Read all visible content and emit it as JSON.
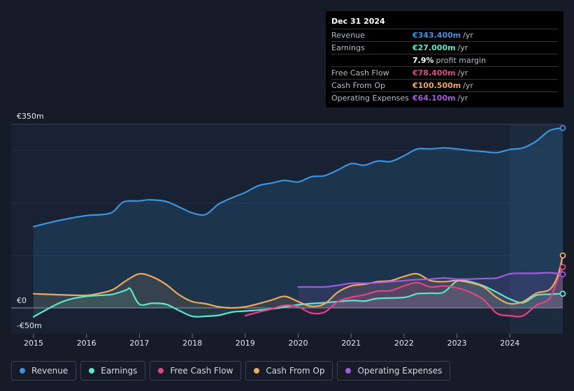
{
  "tooltip": {
    "date": "Dec 31 2024",
    "rows": [
      {
        "label": "Revenue",
        "value": "€343.400m",
        "unit": "/yr",
        "color": "#3b94e0"
      },
      {
        "label": "Earnings",
        "value": "€27.000m",
        "unit": "/yr",
        "color": "#5ee6cf"
      },
      {
        "label": "",
        "value": "7.9%",
        "unit": "profit margin",
        "color": "#ffffff"
      },
      {
        "label": "Free Cash Flow",
        "value": "€78.400m",
        "unit": "/yr",
        "color": "#e0458a"
      },
      {
        "label": "Cash From Op",
        "value": "€100.500m",
        "unit": "/yr",
        "color": "#efa95b"
      },
      {
        "label": "Operating Expenses",
        "value": "€64.100m",
        "unit": "/yr",
        "color": "#a35be0"
      }
    ]
  },
  "y_labels": {
    "top": "€350m",
    "zero": "€0",
    "bottom": "-€50m"
  },
  "legend": [
    {
      "name": "Revenue",
      "color": "#3b94e0"
    },
    {
      "name": "Earnings",
      "color": "#5ee6cf"
    },
    {
      "name": "Free Cash Flow",
      "color": "#e0458a"
    },
    {
      "name": "Cash From Op",
      "color": "#efa95b"
    },
    {
      "name": "Operating Expenses",
      "color": "#a35be0"
    }
  ],
  "chart_data": {
    "type": "line",
    "title": "",
    "xlabel": "",
    "ylabel": "",
    "ylim": [
      -50,
      350
    ],
    "xlim": [
      2015.0,
      2025.0
    ],
    "x_ticks": [
      "2015",
      "2016",
      "2017",
      "2018",
      "2019",
      "2020",
      "2021",
      "2022",
      "2023",
      "2024"
    ],
    "highlight_range": [
      2024.0,
      2025.0
    ],
    "series": [
      {
        "name": "Revenue",
        "color": "#3b94e0",
        "fill": true,
        "x": [
          2015.0,
          2015.5,
          2016.0,
          2016.3,
          2016.5,
          2016.7,
          2017.0,
          2017.2,
          2017.5,
          2017.8,
          2018.0,
          2018.25,
          2018.5,
          2018.8,
          2019.0,
          2019.25,
          2019.5,
          2019.75,
          2020.0,
          2020.25,
          2020.5,
          2020.75,
          2021.0,
          2021.25,
          2021.5,
          2021.75,
          2022.0,
          2022.25,
          2022.5,
          2022.75,
          2023.0,
          2023.25,
          2023.5,
          2023.75,
          2024.0,
          2024.25,
          2024.5,
          2024.75,
          2025.0
        ],
        "values": [
          155,
          167,
          176,
          178,
          183,
          202,
          204,
          206,
          203,
          190,
          181,
          178,
          198,
          212,
          220,
          233,
          238,
          243,
          240,
          250,
          252,
          263,
          275,
          272,
          280,
          279,
          290,
          303,
          303,
          305,
          303,
          300,
          298,
          296,
          302,
          305,
          318,
          338,
          343
        ]
      },
      {
        "name": "Earnings",
        "color": "#5ee6cf",
        "fill": true,
        "x": [
          2015.0,
          2015.25,
          2015.5,
          2015.75,
          2016.0,
          2016.25,
          2016.5,
          2016.75,
          2016.83,
          2017.0,
          2017.25,
          2017.5,
          2017.75,
          2018.0,
          2018.25,
          2018.5,
          2018.75,
          2019.0,
          2019.5,
          2020.0,
          2020.5,
          2021.0,
          2021.25,
          2021.5,
          2022.0,
          2022.25,
          2022.5,
          2022.75,
          2023.0,
          2023.25,
          2023.5,
          2023.75,
          2024.0,
          2024.25,
          2024.5,
          2024.75,
          2025.0
        ],
        "values": [
          -17,
          -3,
          10,
          18,
          22,
          24,
          26,
          34,
          36,
          7,
          9,
          7,
          -5,
          -16,
          -16,
          -14,
          -8,
          -6,
          -2,
          6,
          10,
          14,
          13,
          18,
          20,
          27,
          28,
          30,
          51,
          50,
          42,
          30,
          17,
          10,
          24,
          26,
          27
        ]
      },
      {
        "name": "Free Cash Flow",
        "color": "#e0458a",
        "fill": true,
        "x": [
          2019.0,
          2019.25,
          2019.5,
          2019.75,
          2020.0,
          2020.25,
          2020.5,
          2020.75,
          2021.0,
          2021.25,
          2021.5,
          2021.75,
          2022.0,
          2022.25,
          2022.5,
          2022.75,
          2023.0,
          2023.25,
          2023.5,
          2023.75,
          2024.0,
          2024.25,
          2024.5,
          2024.75,
          2024.9,
          2025.0
        ],
        "values": [
          -15,
          -8,
          -2,
          5,
          2,
          -10,
          -8,
          12,
          20,
          25,
          32,
          33,
          42,
          48,
          40,
          42,
          38,
          30,
          16,
          -10,
          -15,
          -15,
          5,
          18,
          55,
          78
        ]
      },
      {
        "name": "Cash From Op",
        "color": "#efa95b",
        "fill": true,
        "x": [
          2015.0,
          2015.5,
          2016.0,
          2016.25,
          2016.5,
          2016.75,
          2017.0,
          2017.25,
          2017.5,
          2017.75,
          2018.0,
          2018.25,
          2018.5,
          2018.75,
          2019.0,
          2019.25,
          2019.5,
          2019.75,
          2020.0,
          2020.25,
          2020.5,
          2020.75,
          2021.0,
          2021.25,
          2021.5,
          2021.75,
          2022.0,
          2022.25,
          2022.5,
          2022.75,
          2023.0,
          2023.25,
          2023.5,
          2023.75,
          2024.0,
          2024.25,
          2024.5,
          2024.75,
          2024.9,
          2025.0
        ],
        "values": [
          27,
          25,
          24,
          28,
          35,
          52,
          65,
          59,
          45,
          25,
          12,
          8,
          2,
          0,
          2,
          8,
          15,
          22,
          12,
          3,
          8,
          30,
          42,
          45,
          50,
          52,
          60,
          65,
          52,
          50,
          52,
          48,
          40,
          20,
          8,
          12,
          28,
          35,
          60,
          100
        ]
      },
      {
        "name": "Operating Expenses",
        "color": "#a35be0",
        "fill": true,
        "x": [
          2020.0,
          2020.25,
          2020.5,
          2020.75,
          2021.0,
          2021.25,
          2021.5,
          2021.75,
          2022.0,
          2022.25,
          2022.5,
          2022.75,
          2023.0,
          2023.25,
          2023.5,
          2023.75,
          2024.0,
          2024.25,
          2024.5,
          2024.75,
          2025.0
        ],
        "values": [
          40,
          40,
          40,
          43,
          47,
          47,
          48,
          50,
          52,
          54,
          55,
          57,
          55,
          55,
          56,
          57,
          65,
          66,
          66,
          67,
          64
        ]
      }
    ]
  }
}
